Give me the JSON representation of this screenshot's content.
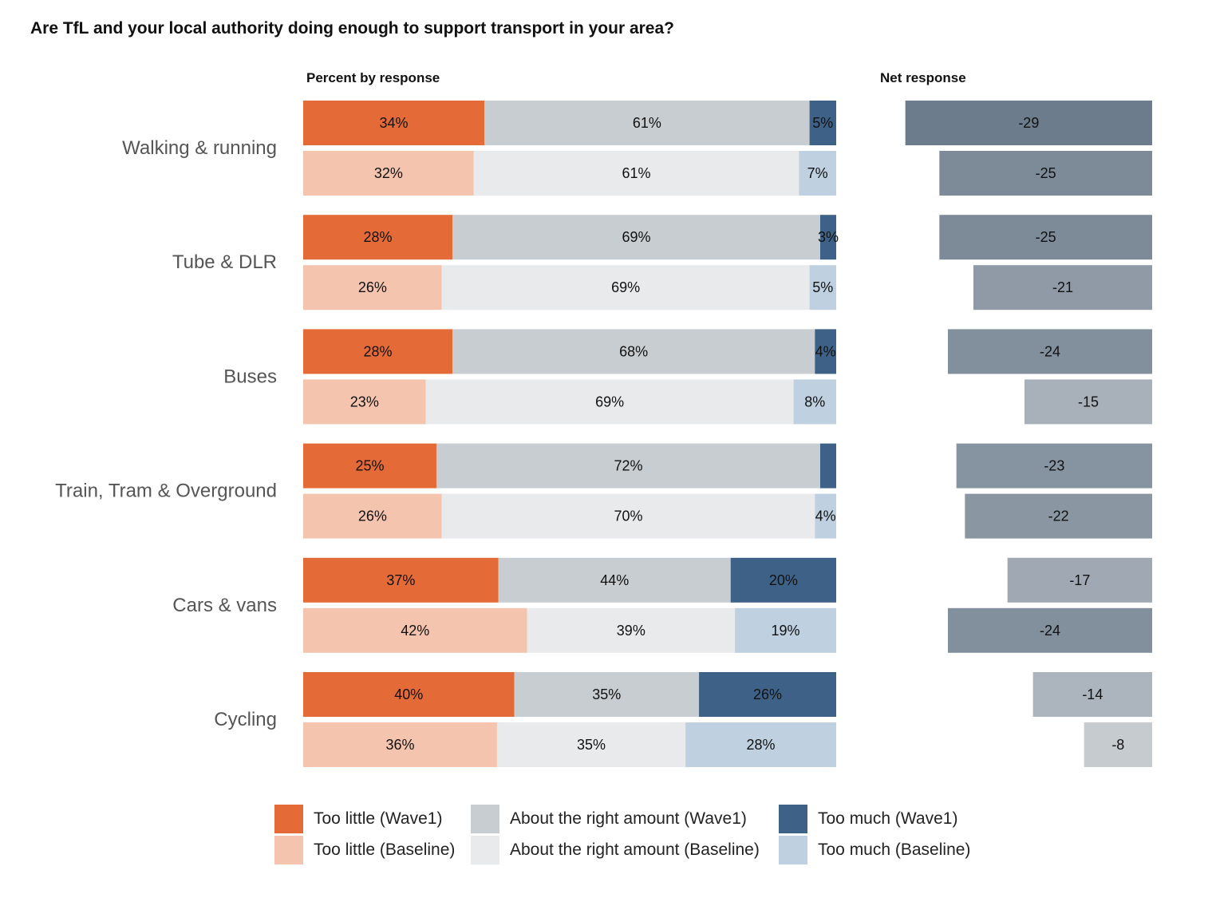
{
  "title": "Are TfL and your local authority doing enough to support transport in your area?",
  "percent_header": "Percent by response",
  "net_header": "Net response",
  "colors": {
    "too_little_wave1": "#E46B37",
    "too_little_baseline": "#F4C4AE",
    "right_wave1": "#C8CDD1",
    "right_baseline": "#E9EAEC",
    "too_much_wave1": "#3E6287",
    "too_much_baseline": "#BFD1E0"
  },
  "legend": [
    {
      "label": "Too little (Wave1)",
      "color": "#E46B37"
    },
    {
      "label": "Too little (Baseline)",
      "color": "#F4C4AE"
    },
    {
      "label": "About the right amount (Wave1)",
      "color": "#C8CDD1"
    },
    {
      "label": "About the right amount (Baseline)",
      "color": "#E9EAEC"
    },
    {
      "label": "Too much (Wave1)",
      "color": "#3E6287"
    },
    {
      "label": "Too much (Baseline)",
      "color": "#BFD1E0"
    }
  ],
  "chart_data": {
    "type": "bar",
    "orientation": "horizontal",
    "stacked": true,
    "title": "Are TfL and your local authority doing enough to support transport in your area?",
    "categories": [
      "Walking & running",
      "Tube & DLR",
      "Buses",
      "Train, Tram & Overground",
      "Cars & vans",
      "Cycling"
    ],
    "series_names": [
      "Too little",
      "About the right amount",
      "Too much"
    ],
    "waves": [
      "Wave1",
      "Baseline"
    ],
    "percent_by_response": [
      {
        "wave1": [
          34,
          61,
          5
        ],
        "wave1_labels": [
          "34%",
          "61%",
          "5%"
        ],
        "baseline": [
          32,
          61,
          7
        ],
        "baseline_labels": [
          "32%",
          "61%",
          "7%"
        ]
      },
      {
        "wave1": [
          28,
          69,
          3
        ],
        "wave1_labels": [
          "28%",
          "69%",
          "3%"
        ],
        "baseline": [
          26,
          69,
          5
        ],
        "baseline_labels": [
          "26%",
          "69%",
          "5%"
        ]
      },
      {
        "wave1": [
          28,
          68,
          4
        ],
        "wave1_labels": [
          "28%",
          "68%",
          "4%"
        ],
        "baseline": [
          23,
          69,
          8
        ],
        "baseline_labels": [
          "23%",
          "69%",
          "8%"
        ]
      },
      {
        "wave1": [
          25,
          72,
          3
        ],
        "wave1_labels": [
          "25%",
          "72%",
          ""
        ],
        "baseline": [
          26,
          70,
          4
        ],
        "baseline_labels": [
          "26%",
          "70%",
          "4%"
        ]
      },
      {
        "wave1": [
          37,
          44,
          20
        ],
        "wave1_labels": [
          "37%",
          "44%",
          "20%"
        ],
        "baseline": [
          42,
          39,
          19
        ],
        "baseline_labels": [
          "42%",
          "39%",
          "19%"
        ]
      },
      {
        "wave1": [
          40,
          35,
          26
        ],
        "wave1_labels": [
          "40%",
          "35%",
          "26%"
        ],
        "baseline": [
          36,
          35,
          28
        ],
        "baseline_labels": [
          "36%",
          "35%",
          "28%"
        ]
      }
    ],
    "net_response": [
      {
        "wave1": -29,
        "baseline": -25,
        "wave1_label": "-29",
        "baseline_label": "-25"
      },
      {
        "wave1": -25,
        "baseline": -21,
        "wave1_label": "-25",
        "baseline_label": "-21"
      },
      {
        "wave1": -24,
        "baseline": -15,
        "wave1_label": "-24",
        "baseline_label": "-15"
      },
      {
        "wave1": -23,
        "baseline": -22,
        "wave1_label": "-23",
        "baseline_label": "-22"
      },
      {
        "wave1": -17,
        "baseline": -24,
        "wave1_label": "-17",
        "baseline_label": "-24"
      },
      {
        "wave1": -14,
        "baseline": -8,
        "wave1_label": "-14",
        "baseline_label": "-8"
      }
    ],
    "net_xlim": [
      -30,
      0
    ],
    "percent_xlim": [
      0,
      100
    ],
    "legend_position": "bottom"
  }
}
